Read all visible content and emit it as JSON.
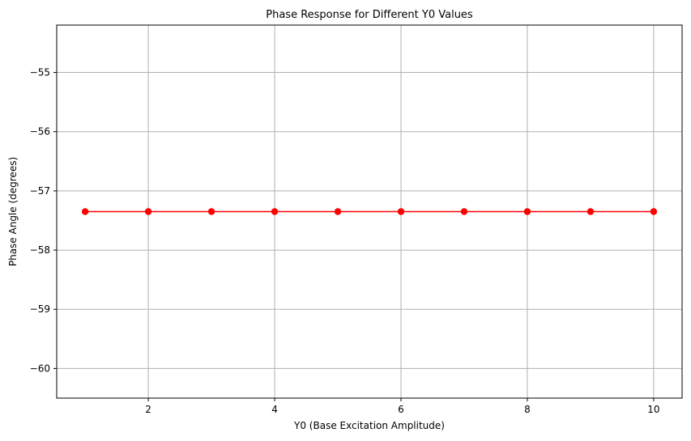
{
  "chart_data": {
    "type": "line",
    "title": "Phase Response for Different Y0 Values",
    "xlabel": "Y0 (Base Excitation Amplitude)",
    "ylabel": "Phase Angle (degrees)",
    "xlim": [
      0.55,
      10.45
    ],
    "ylim": [
      -60.5,
      -54.2
    ],
    "xticks": [
      2,
      4,
      6,
      8,
      10
    ],
    "yticks": [
      -60,
      -59,
      -58,
      -57,
      -56,
      -55
    ],
    "xtick_labels": [
      "2",
      "4",
      "6",
      "8",
      "10"
    ],
    "ytick_labels": [
      "−60",
      "−59",
      "−58",
      "−57",
      "−56",
      "−55"
    ],
    "grid": true,
    "series": [
      {
        "color": "#ff0000",
        "marker": "circle",
        "x": [
          1,
          2,
          3,
          4,
          5,
          6,
          7,
          8,
          9,
          10
        ],
        "y": [
          -57.35,
          -57.35,
          -57.35,
          -57.35,
          -57.35,
          -57.35,
          -57.35,
          -57.35,
          -57.35,
          -57.35
        ]
      }
    ]
  }
}
